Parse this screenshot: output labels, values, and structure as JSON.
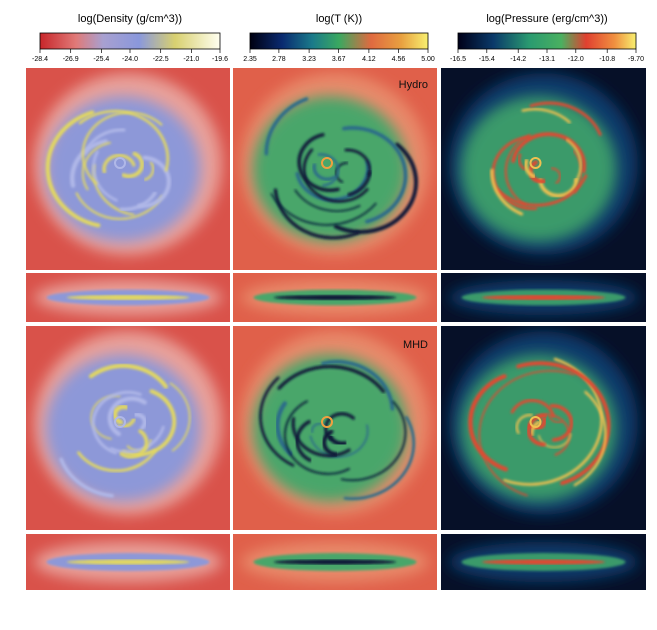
{
  "colorbars": [
    {
      "title": "log(Density (g/cm^3))",
      "ticks": [
        -28.4,
        -26.9,
        -25.4,
        {
          "value": -24,
          "label": "-24.0"
        },
        -22.5,
        {
          "value": -21,
          "label": "-21.0"
        },
        -19.6
      ]
    },
    {
      "title": "log(T (K))",
      "ticks": [
        2.35,
        2.78,
        3.23,
        3.67,
        4.12,
        4.56,
        {
          "value": 5,
          "label": "5.00"
        }
      ]
    },
    {
      "title": "log(Pressure (erg/cm^3))",
      "ticks": [
        -16.5,
        -15.4,
        -14.2,
        -13.1,
        {
          "value": -12,
          "label": "-12.0"
        },
        -10.8,
        {
          "value": -9.7,
          "label": "-9.70"
        }
      ]
    }
  ],
  "panel_labels": [
    "Hydro",
    "MHD"
  ]
}
